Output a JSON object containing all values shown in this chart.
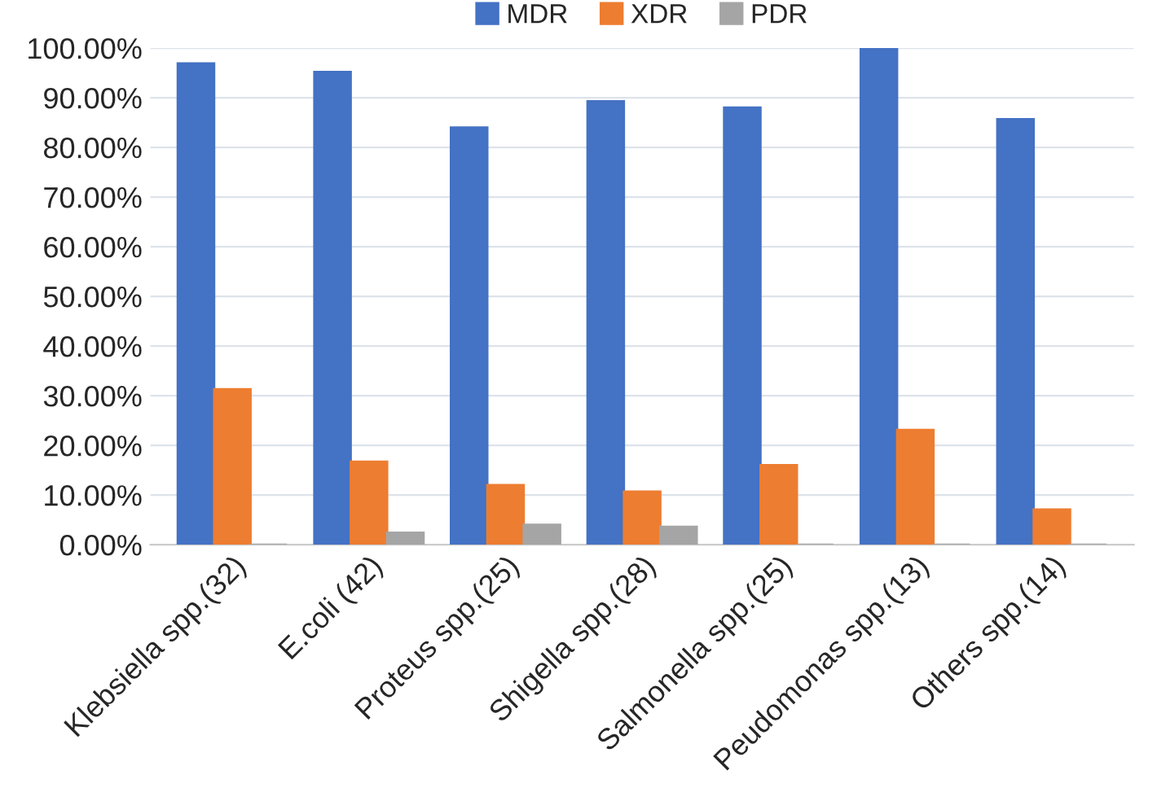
{
  "chart_data": {
    "type": "bar",
    "categories": [
      "Klebsiella spp.(32)",
      "E.coli (42)",
      "Proteus spp.(25)",
      "Shigella spp.(28)",
      "Salmonella spp.(25)",
      "Peudomonas spp.(13)",
      "Others spp.(14)"
    ],
    "series": [
      {
        "name": "MDR",
        "color": "#4472c4",
        "values": [
          96.9,
          95.2,
          84.0,
          89.3,
          88.0,
          100.0,
          85.7
        ]
      },
      {
        "name": "XDR",
        "color": "#ed7d31",
        "values": [
          31.3,
          16.7,
          12.0,
          10.7,
          16.0,
          23.1,
          7.1
        ]
      },
      {
        "name": "PDR",
        "color": "#a5a5a5",
        "values": [
          0,
          2.4,
          4.0,
          3.6,
          0,
          0,
          0
        ]
      }
    ],
    "ylim": [
      0,
      100
    ],
    "yticks": [
      {
        "value": 0,
        "label": "0.00%"
      },
      {
        "value": 10,
        "label": "10.00%"
      },
      {
        "value": 20,
        "label": "20.00%"
      },
      {
        "value": 30,
        "label": "30.00%"
      },
      {
        "value": 40,
        "label": "40.00%"
      },
      {
        "value": 50,
        "label": "50.00%"
      },
      {
        "value": 60,
        "label": "60.00%"
      },
      {
        "value": 70,
        "label": "70.00%"
      },
      {
        "value": 80,
        "label": "80.00%"
      },
      {
        "value": 90,
        "label": "90.00%"
      },
      {
        "value": 100,
        "label": "100.00%"
      }
    ],
    "grid": "y",
    "legend": "top"
  }
}
